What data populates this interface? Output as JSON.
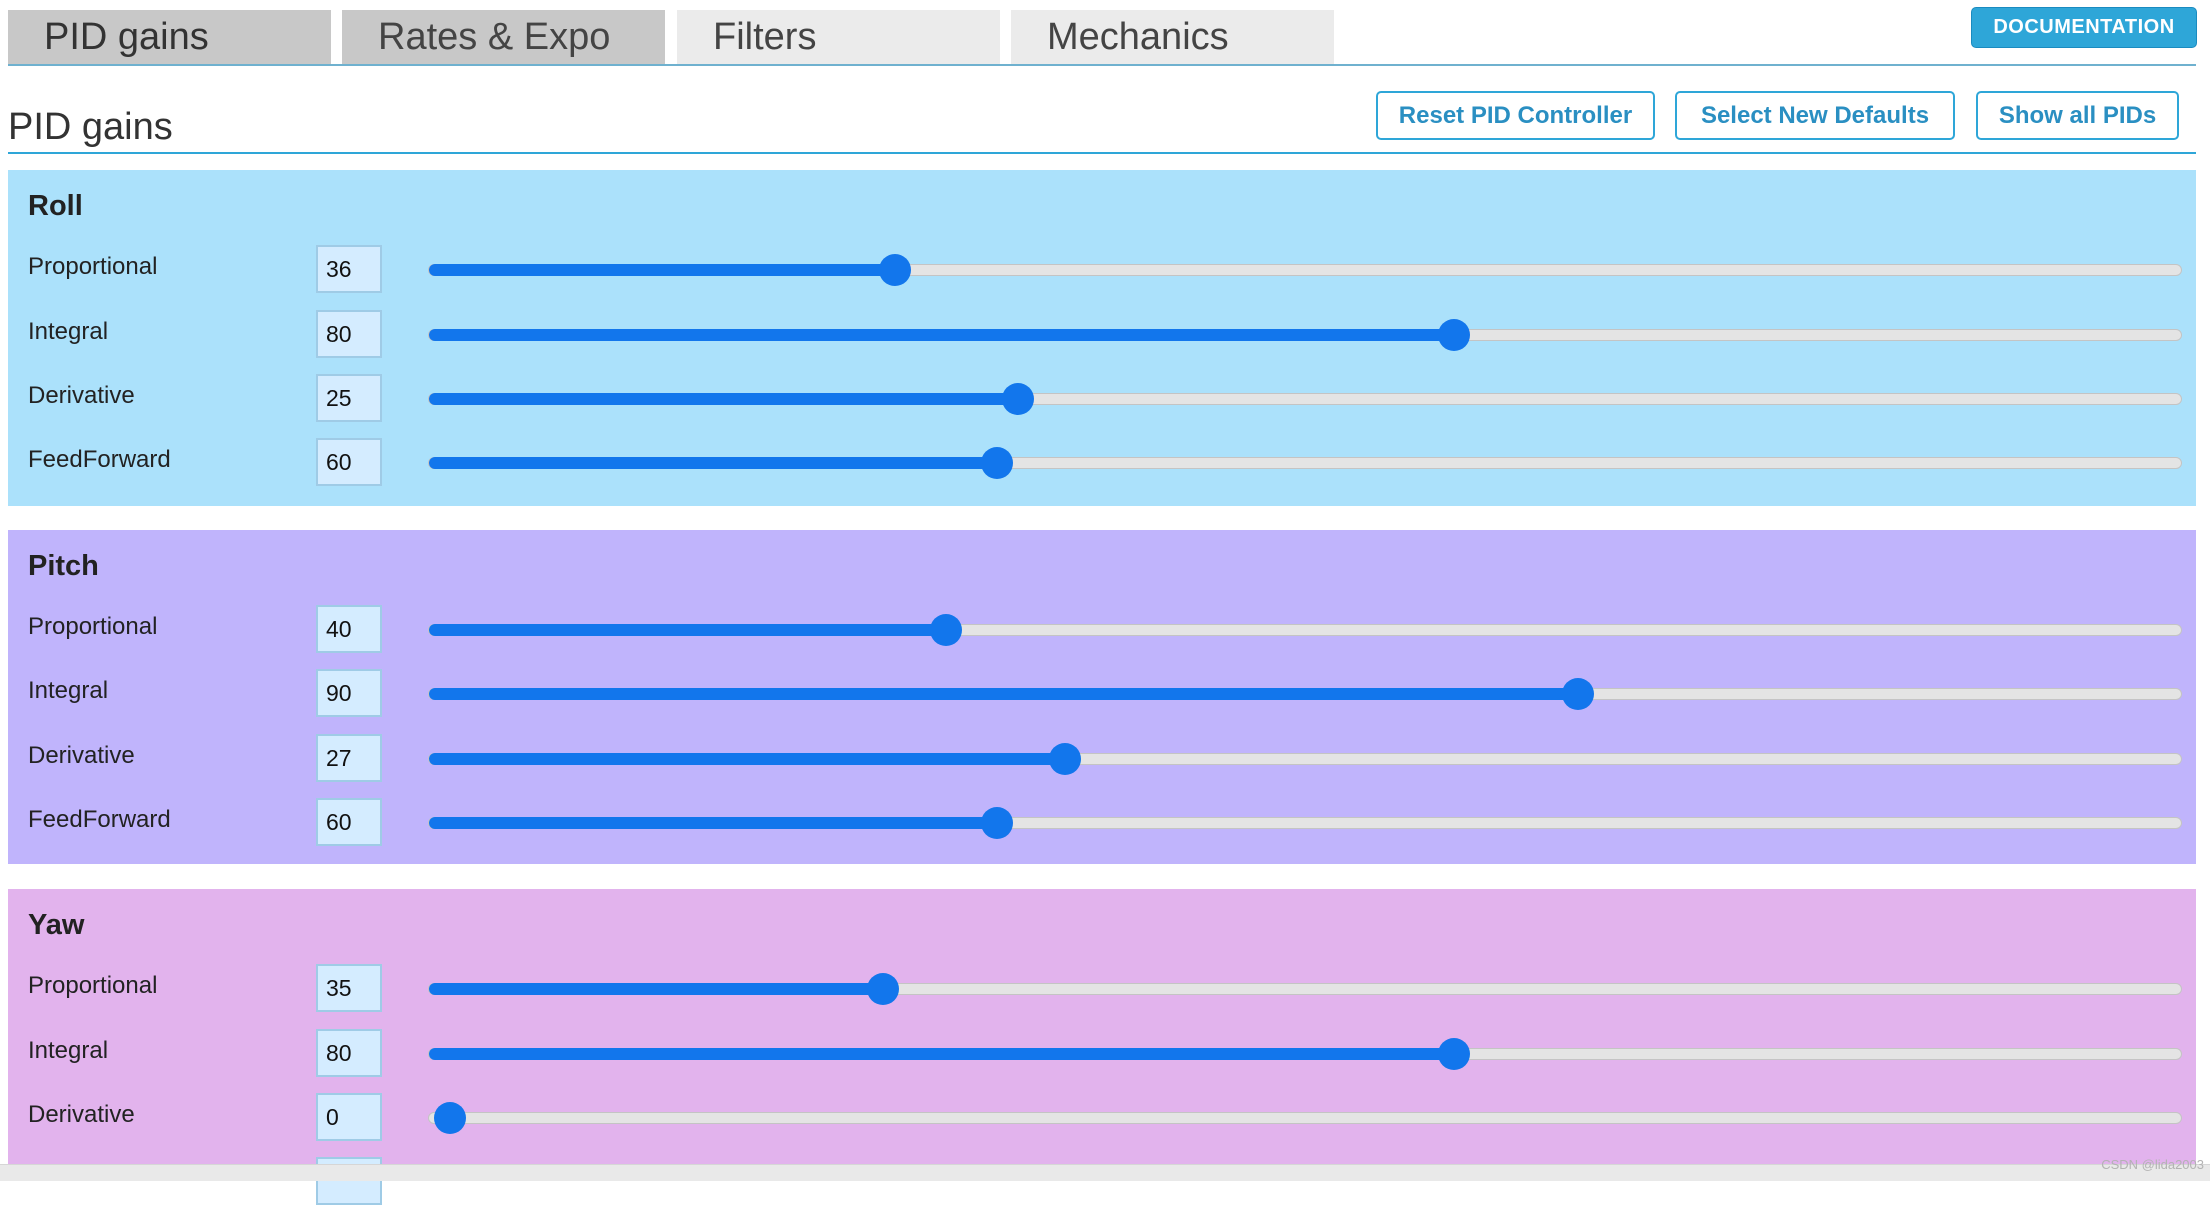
{
  "tabs": [
    {
      "label": "PID gains"
    },
    {
      "label": "Rates & Expo"
    },
    {
      "label": "Filters"
    },
    {
      "label": "Mechanics"
    }
  ],
  "documentation_label": "DOCUMENTATION",
  "header": {
    "title": "PID gains",
    "reset_label": "Reset PID Controller",
    "defaults_label": "Select New Defaults",
    "showall_label": "Show all PIDs"
  },
  "slider_max": 200,
  "sections": [
    {
      "title": "Roll",
      "color": "#abe1fb",
      "rows": [
        {
          "label": "Proportional",
          "value": "36",
          "level": 0.266
        },
        {
          "label": "Integral",
          "value": "80",
          "level": 0.585
        },
        {
          "label": "Derivative",
          "value": "25",
          "level": 0.336
        },
        {
          "label": "FeedForward",
          "value": "60",
          "level": 0.324
        }
      ]
    },
    {
      "title": "Pitch",
      "color": "#c0b4fc",
      "rows": [
        {
          "label": "Proportional",
          "value": "40",
          "level": 0.295
        },
        {
          "label": "Integral",
          "value": "90",
          "level": 0.656
        },
        {
          "label": "Derivative",
          "value": "27",
          "level": 0.363
        },
        {
          "label": "FeedForward",
          "value": "60",
          "level": 0.324
        }
      ]
    },
    {
      "title": "Yaw",
      "color": "#e2b3ed",
      "rows": [
        {
          "label": "Proportional",
          "value": "35",
          "level": 0.259
        },
        {
          "label": "Integral",
          "value": "80",
          "level": 0.585
        },
        {
          "label": "Derivative",
          "value": "0",
          "level": 0.0
        }
      ]
    }
  ],
  "watermark": "CSDN @lida2003",
  "colors": {
    "accent": "#2ea6d8",
    "slider": "#1276ec"
  }
}
